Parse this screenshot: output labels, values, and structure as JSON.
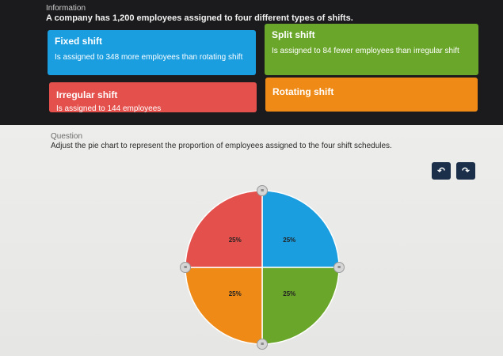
{
  "info": {
    "heading": "Information",
    "text": "A company has 1,200 employees assigned to four different types of shifts."
  },
  "cards": {
    "fixed": {
      "title": "Fixed shift",
      "desc": "Is assigned to 348 more employees than rotating shift"
    },
    "split": {
      "title": "Split shift",
      "desc": "Is assigned to 84 fewer employees than irregular shift"
    },
    "irregular": {
      "title": "Irregular shift",
      "desc": "Is assigned to 144 employees"
    },
    "rotating": {
      "title": "Rotating shift",
      "desc": ""
    }
  },
  "question": {
    "heading": "Question",
    "text": "Adjust the pie chart to represent the proportion of employees assigned to the four shift schedules."
  },
  "toolbar": {
    "undo_icon": "undo-icon",
    "redo_icon": "redo-icon",
    "undo_glyph": "↶",
    "redo_glyph": "↷"
  },
  "pie": {
    "handle_glyph": "≡",
    "slices": [
      {
        "label": "25%",
        "value": 25,
        "color": "#1a9ee0"
      },
      {
        "label": "25%",
        "value": 25,
        "color": "#6aa62a"
      },
      {
        "label": "25%",
        "value": 25,
        "color": "#ef8a16"
      },
      {
        "label": "25%",
        "value": 25,
        "color": "#e4504c"
      }
    ]
  }
}
